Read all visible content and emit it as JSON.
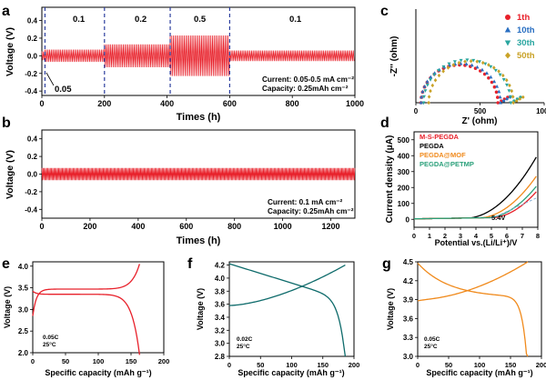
{
  "panel_labels": [
    "a",
    "b",
    "c",
    "d",
    "e",
    "f",
    "g"
  ],
  "colors": {
    "red": "#e8202a",
    "blue_dash": "#2c3e9e",
    "black": "#000000",
    "orange": "#f08a1c",
    "green": "#2aa07a",
    "teal": "#0e6b6b",
    "c_red": "#e8202a",
    "c_blue": "#2a6fc2",
    "c_teal": "#2aa6a0",
    "c_gold": "#c9a227",
    "d_red": "#e8202a",
    "d_orange": "#f08a1c",
    "d_green": "#2aa07a"
  },
  "chart_data": [
    {
      "id": "a",
      "type": "line",
      "xlabel": "Times (h)",
      "ylabel": "Voltage (V)",
      "xlim": [
        0,
        1000
      ],
      "ylim": [
        -0.45,
        0.55
      ],
      "xticks": [
        "0",
        "200",
        "400",
        "600",
        "800",
        "1000"
      ],
      "yticks": [
        "-0.4",
        "-0.2",
        "0.0",
        "0.2",
        "0.4"
      ],
      "segment_labels": [
        "0.1",
        "0.2",
        "0.5",
        "0.1",
        "0.05"
      ],
      "segments": [
        {
          "from": 0,
          "to": 10,
          "amplitude": 0.05
        },
        {
          "from": 10,
          "to": 200,
          "amplitude": 0.07
        },
        {
          "from": 200,
          "to": 410,
          "amplitude": 0.13
        },
        {
          "from": 410,
          "to": 600,
          "amplitude": 0.23
        },
        {
          "from": 600,
          "to": 1000,
          "amplitude": 0.06
        }
      ],
      "dashed_lines_x": [
        10,
        200,
        410,
        600
      ],
      "annotation": [
        "Current: 0.05-0.5 mA cm⁻²",
        "Capacity: 0.25mAh cm⁻²"
      ]
    },
    {
      "id": "b",
      "type": "line",
      "xlabel": "Times (h)",
      "ylabel": "Voltage (V)",
      "xlim": [
        0,
        1300
      ],
      "ylim": [
        -0.5,
        0.5
      ],
      "xticks": [
        "0",
        "200",
        "400",
        "600",
        "800",
        "1000",
        "1200"
      ],
      "yticks": [
        "-0.4",
        "-0.2",
        "0.0",
        "0.2",
        "0.4"
      ],
      "amplitude": 0.07,
      "annotation": [
        "Current: 0.1 mA cm⁻²",
        "Capacity: 0.25mAh cm⁻²"
      ]
    },
    {
      "id": "c",
      "type": "scatter",
      "xlabel": "Z' (ohm)",
      "ylabel": "-Z'' (ohm)",
      "xlim": [
        0,
        1000
      ],
      "ylim": [
        0,
        500
      ],
      "xticks": [
        "0",
        "500",
        "1000"
      ],
      "series": [
        {
          "name": "1th",
          "marker": "circle",
          "r": 300,
          "x0": 40
        },
        {
          "name": "10th",
          "marker": "triangle-up",
          "r": 310,
          "x0": 40
        },
        {
          "name": "30th",
          "marker": "triangle-down",
          "r": 340,
          "x0": 60
        },
        {
          "name": "50th",
          "marker": "diamond",
          "r": 330,
          "x0": 100
        }
      ]
    },
    {
      "id": "d",
      "type": "line",
      "xlabel": "Potential vs.(Li/Li⁺)/V",
      "ylabel": "Current density (μA)",
      "xlim": [
        0,
        8
      ],
      "ylim": [
        -50,
        550
      ],
      "xticks": [
        "0",
        "1",
        "2",
        "3",
        "4",
        "5",
        "6",
        "7",
        "8"
      ],
      "yticks": [
        "0",
        "100",
        "200",
        "300",
        "400",
        "500"
      ],
      "annotation": "5.4V",
      "series": [
        {
          "name": "M-S-PEGDA",
          "onset": 6.4
        },
        {
          "name": "PEGDA",
          "onset": 4.8
        },
        {
          "name": "PEGDA@MOF",
          "onset": 5.6
        },
        {
          "name": "PEGDA@PETMP",
          "onset": 6.1
        }
      ]
    },
    {
      "id": "e",
      "type": "line",
      "xlabel": "Specific capacity (mAh g⁻¹)",
      "ylabel": "Voltage (V)",
      "xlim": [
        0,
        200
      ],
      "ylim": [
        2.0,
        4.1
      ],
      "xticks": [
        "0",
        "50",
        "100",
        "150",
        "200"
      ],
      "yticks": [
        "2.0",
        "2.5",
        "3.0",
        "3.5",
        "4.0"
      ],
      "notes": [
        "0.05C",
        "25°C"
      ],
      "charge_plateau": 3.47,
      "discharge_plateau": 3.35,
      "capacity": 163
    },
    {
      "id": "f",
      "type": "line",
      "xlabel": "Specific capacity (mAh g⁻¹)",
      "ylabel": "Voltage (V)",
      "xlim": [
        0,
        200
      ],
      "ylim": [
        2.8,
        4.25
      ],
      "xticks": [
        "0",
        "50",
        "100",
        "150",
        "200"
      ],
      "yticks": [
        "2.8",
        "3.0",
        "3.2",
        "3.4",
        "3.6",
        "3.8",
        "4.0",
        "4.2"
      ],
      "notes": [
        "0.02C",
        "25°C"
      ],
      "capacity": 186
    },
    {
      "id": "g",
      "type": "line",
      "xlabel": "Specific capacity (mAh g⁻¹)",
      "ylabel": "Voltage (V)",
      "xlim": [
        0,
        200
      ],
      "ylim": [
        3.0,
        4.5
      ],
      "xticks": [
        "0",
        "50",
        "100",
        "150",
        "200"
      ],
      "yticks": [
        "3.0",
        "3.3",
        "3.6",
        "3.9",
        "4.2",
        "4.5"
      ],
      "notes": [
        "0.05C",
        "25°C"
      ],
      "capacity": 178
    }
  ]
}
